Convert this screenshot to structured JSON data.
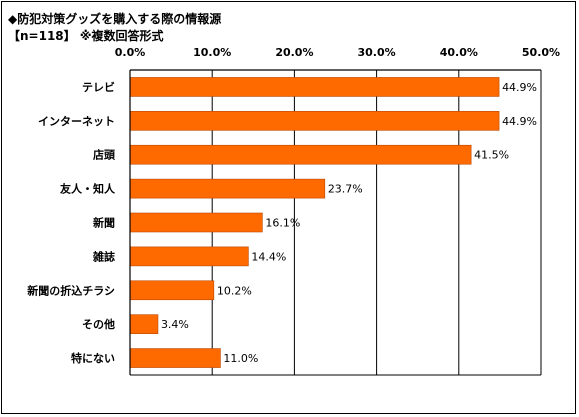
{
  "title": "◆防犯対策グッズを購入する際の情報源",
  "subtitle": "【n=118】 ※複数回答形式",
  "colors": {
    "bar": "#ff6a00",
    "bar_edge": "#b84600",
    "grid": "#000000"
  },
  "chart_data": {
    "type": "bar",
    "orientation": "horizontal",
    "title": "◆防犯対策グッズを購入する際の情報源",
    "subtitle": "【n=118】 ※複数回答形式",
    "categories": [
      "テレビ",
      "インターネット",
      "店頭",
      "友人・知人",
      "新聞",
      "雑誌",
      "新聞の折込チラシ",
      "その他",
      "特にない"
    ],
    "values": [
      44.9,
      44.9,
      41.5,
      23.7,
      16.1,
      14.4,
      10.2,
      3.4,
      11.0
    ],
    "value_labels": [
      "44.9%",
      "44.9%",
      "41.5%",
      "23.7%",
      "16.1%",
      "14.4%",
      "10.2%",
      "3.4%",
      "11.0%"
    ],
    "xlim": [
      0,
      50
    ],
    "xticks": [
      0,
      10,
      20,
      30,
      40,
      50
    ],
    "xtick_labels": [
      "0.0%",
      "10.0%",
      "20.0%",
      "30.0%",
      "40.0%",
      "50.0%"
    ],
    "xtick_position": "top",
    "grid": true,
    "xlabel": "",
    "ylabel": ""
  }
}
